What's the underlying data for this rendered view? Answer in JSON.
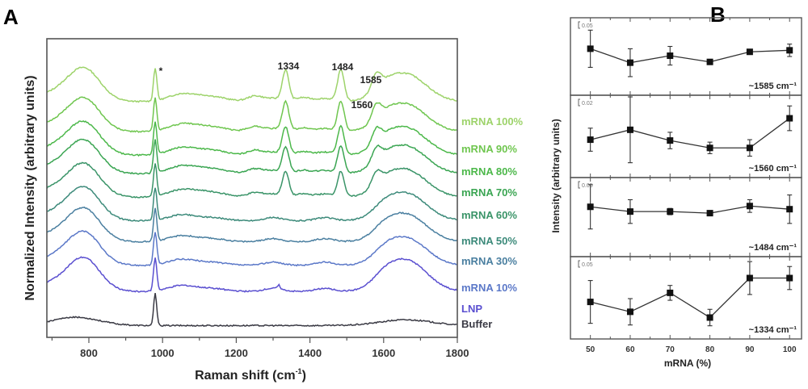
{
  "chart_data": [
    {
      "panel": "A",
      "type": "line",
      "title": "",
      "xlabel": "Raman shift (cm⁻¹)",
      "ylabel": "Normalized Intensity (arbitrary units)",
      "xlim": [
        686,
        1800
      ],
      "xticks": [
        800,
        1000,
        1200,
        1400,
        1600,
        1800
      ],
      "xtick_labels": [
        "800",
        "1000",
        "1200",
        "1400",
        "1600",
        "1800"
      ],
      "yticks": [],
      "grid": false,
      "stacked_offset": true,
      "peak_annotations": [
        {
          "label": "*",
          "x": 980
        },
        {
          "label": "1334",
          "x": 1334
        },
        {
          "label": "1484",
          "x": 1484
        },
        {
          "label": "1560",
          "x": 1560
        },
        {
          "label": "1585",
          "x": 1585
        }
      ],
      "series": [
        {
          "name": "mRNA 100%",
          "color": "#9dd36a",
          "offset": 9.0,
          "profile": "rna",
          "rna_weight": 1.0
        },
        {
          "name": "mRNA 90%",
          "color": "#6fc64f",
          "offset": 7.85,
          "profile": "rna",
          "rna_weight": 0.95
        },
        {
          "name": "mRNA 80%",
          "color": "#4cb84a",
          "offset": 6.95,
          "profile": "rna",
          "rna_weight": 0.9
        },
        {
          "name": "mRNA 70%",
          "color": "#3aa552",
          "offset": 6.25,
          "profile": "rna",
          "rna_weight": 0.85
        },
        {
          "name": "mRNA 60%",
          "color": "#3a9468",
          "offset": 5.35,
          "profile": "rna",
          "rna_weight": 0.8
        },
        {
          "name": "mRNA 50%",
          "color": "#3c8a7a",
          "offset": 4.45,
          "profile": "lnp",
          "rna_weight": 0.15
        },
        {
          "name": "mRNA 30%",
          "color": "#4a7fa0",
          "offset": 3.65,
          "profile": "lnp",
          "rna_weight": 0.1
        },
        {
          "name": "mRNA 10%",
          "color": "#5b78c8",
          "offset": 2.75,
          "profile": "lnp",
          "rna_weight": 0.05
        },
        {
          "name": "LNP",
          "color": "#5a4fd0",
          "offset": 1.75,
          "profile": "lnp",
          "rna_weight": 0.0
        },
        {
          "name": "Buffer",
          "color": "#3a3a44",
          "offset": 0.45,
          "profile": "buffer",
          "rna_weight": 0.0
        }
      ]
    },
    {
      "panel": "B",
      "type": "line",
      "xlabel": "mRNA (%)",
      "ylabel": "Intensity (arbitrary units)",
      "xlim": [
        45,
        103
      ],
      "xticks": [
        50,
        60,
        70,
        80,
        90,
        100
      ],
      "xtick_labels": [
        "50",
        "60",
        "70",
        "80",
        "90",
        "100"
      ],
      "grid": false,
      "subplots": [
        {
          "band": "~1585 cm⁻¹",
          "scale_bar": "0.05",
          "x": [
            50,
            60,
            70,
            80,
            90,
            100
          ],
          "y": [
            0.6,
            0.42,
            0.51,
            0.43,
            0.56,
            0.58
          ],
          "err": [
            0.24,
            0.18,
            0.12,
            0.03,
            0.03,
            0.08
          ]
        },
        {
          "band": "~1560 cm⁻¹",
          "scale_bar": "0.02",
          "x": [
            50,
            60,
            70,
            80,
            90,
            100
          ],
          "y": [
            0.46,
            0.58,
            0.45,
            0.36,
            0.36,
            0.72
          ],
          "err": [
            0.14,
            0.4,
            0.1,
            0.07,
            0.1,
            0.15
          ]
        },
        {
          "band": "~1484 cm⁻¹",
          "scale_bar": "0.05",
          "x": [
            50,
            60,
            70,
            80,
            90,
            100
          ],
          "y": [
            0.63,
            0.57,
            0.57,
            0.55,
            0.64,
            0.6
          ],
          "err": [
            0.28,
            0.15,
            0.04,
            0.03,
            0.08,
            0.18
          ]
        },
        {
          "band": "~1334 cm⁻¹",
          "scale_bar": "0.05",
          "x": [
            50,
            60,
            70,
            80,
            90,
            100
          ],
          "y": [
            0.45,
            0.33,
            0.56,
            0.26,
            0.74,
            0.74
          ],
          "err": [
            0.26,
            0.16,
            0.09,
            0.1,
            0.2,
            0.14
          ]
        }
      ]
    }
  ],
  "labels": {
    "panel_a": "A",
    "panel_b": "B",
    "a_xlabel": "Raman shift (cm",
    "a_xlabel_sup": "-1",
    "a_xlabel_end": ")",
    "a_ylabel": "Normalized Intensity (arbitrary units)",
    "b_xlabel": "mRNA (%)",
    "b_ylabel": "Intensity (arbitrary units)",
    "star": "*",
    "peak_1334": "1334",
    "peak_1484": "1484",
    "peak_1560": "1560",
    "peak_1585": "1585"
  }
}
